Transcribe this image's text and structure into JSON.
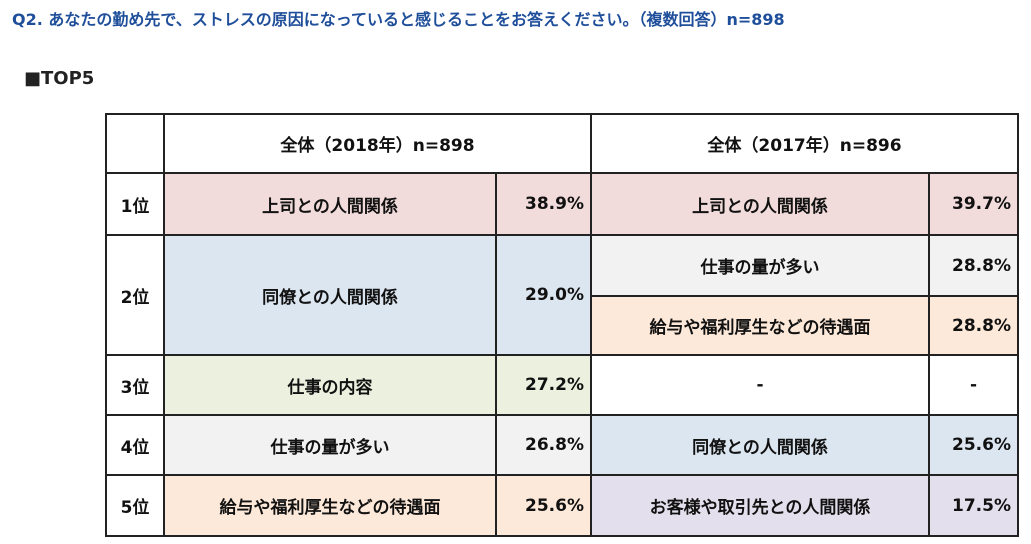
{
  "header": {
    "title": "Q2. あなたの勤め先で、ストレスの原因になっていると感じることをお答えください。（複数回答）n=898",
    "section": "■TOP5"
  },
  "table": {
    "columns": [
      "全体（2018年）n=898",
      "全体（2017年）n=896"
    ],
    "rows": [
      {
        "rank": "1位",
        "left": [
          "上司との人間関係",
          "38.9%"
        ],
        "right": [
          [
            "上司との人間関係",
            "39.7%"
          ]
        ]
      },
      {
        "rank": "2位",
        "left": [
          "同僚との人間関係",
          "29.0%"
        ],
        "right": [
          [
            "仕事の量が多い",
            "28.8%"
          ],
          [
            "給与や福利厚生などの待遇面",
            "28.8%"
          ]
        ]
      },
      {
        "rank": "3位",
        "left": [
          "仕事の内容",
          "27.2%"
        ],
        "right": [
          [
            "-",
            "-"
          ]
        ]
      },
      {
        "rank": "4位",
        "left": [
          "仕事の量が多い",
          "26.8%"
        ],
        "right": [
          [
            "同僚との人間関係",
            "25.6%"
          ]
        ]
      },
      {
        "rank": "5位",
        "left": [
          "給与や福利厚生などの待遇面",
          "25.6%"
        ],
        "right": [
          [
            "お客様や取引先との人間関係",
            "17.5%"
          ]
        ]
      }
    ]
  }
}
